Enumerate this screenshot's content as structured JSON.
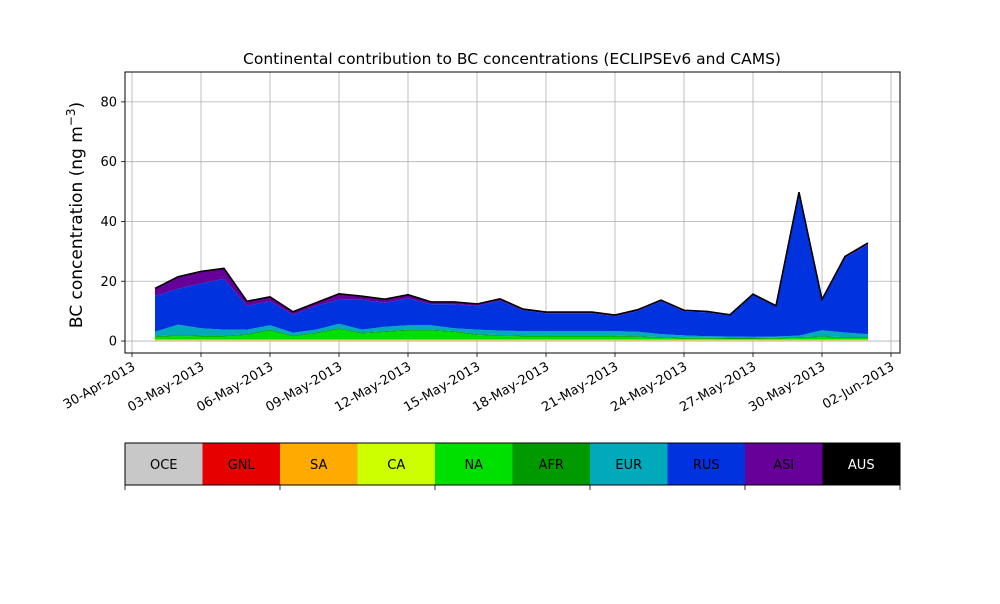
{
  "chart_data": {
    "type": "area",
    "stacked": true,
    "title": "Continental contribution to BC concentrations (ECLIPSEv6 and CAMS)",
    "ylabel_main": "BC concentration (ng m",
    "ylabel_sup": "−3",
    "ylabel_close": ")",
    "xlabel": "",
    "grid": true,
    "ylim": [
      -4,
      90
    ],
    "xlim": [
      "2013-04-30",
      "2013-06-02"
    ],
    "x_ticks": [
      "30-Apr-2013",
      "03-May-2013",
      "06-May-2013",
      "09-May-2013",
      "12-May-2013",
      "15-May-2013",
      "18-May-2013",
      "21-May-2013",
      "24-May-2013",
      "27-May-2013",
      "30-May-2013",
      "02-Jun-2013"
    ],
    "y_ticks": [
      "0",
      "20",
      "40",
      "60",
      "80"
    ],
    "dates": [
      "2013-05-01",
      "2013-05-02",
      "2013-05-03",
      "2013-05-04",
      "2013-05-05",
      "2013-05-06",
      "2013-05-07",
      "2013-05-08",
      "2013-05-09",
      "2013-05-10",
      "2013-05-11",
      "2013-05-12",
      "2013-05-13",
      "2013-05-14",
      "2013-05-15",
      "2013-05-16",
      "2013-05-17",
      "2013-05-18",
      "2013-05-19",
      "2013-05-20",
      "2013-05-21",
      "2013-05-22",
      "2013-05-23",
      "2013-05-24",
      "2013-05-25",
      "2013-05-26",
      "2013-05-27",
      "2013-05-28",
      "2013-05-29",
      "2013-05-30",
      "2013-05-31",
      "2013-06-01"
    ],
    "series": [
      {
        "name": "OCE",
        "color": "#c8c8c8",
        "values": [
          0.2,
          0.2,
          0.2,
          0.2,
          0.2,
          0.2,
          0.2,
          0.2,
          0.2,
          0.2,
          0.2,
          0.2,
          0.2,
          0.2,
          0.2,
          0.2,
          0.2,
          0.2,
          0.2,
          0.2,
          0.2,
          0.2,
          0.2,
          0.2,
          0.2,
          0.2,
          0.2,
          0.2,
          0.2,
          0.2,
          0.2,
          0.2
        ]
      },
      {
        "name": "GNL",
        "color": "#e60000",
        "values": [
          0,
          0,
          0,
          0,
          0,
          0,
          0,
          0,
          0,
          0,
          0,
          0,
          0,
          0,
          0,
          0,
          0,
          0,
          0,
          0,
          0,
          0,
          0,
          0,
          0,
          0,
          0,
          0,
          0,
          0,
          0,
          0
        ]
      },
      {
        "name": "SA",
        "color": "#ffaa00",
        "values": [
          0.1,
          0.1,
          0.1,
          0.1,
          0.1,
          0.1,
          0.1,
          0.1,
          0.1,
          0.1,
          0.1,
          0.1,
          0.1,
          0.1,
          0.1,
          0.1,
          0.1,
          0.1,
          0.1,
          0.1,
          0.1,
          0.1,
          0.1,
          0.1,
          0.1,
          0.1,
          0.1,
          0.1,
          0.1,
          0.1,
          0.1,
          0.1
        ]
      },
      {
        "name": "CA",
        "color": "#ccff00",
        "values": [
          0.2,
          0.2,
          0.2,
          0.2,
          0.2,
          0.2,
          0.2,
          0.2,
          0.2,
          0.2,
          0.2,
          0.2,
          0.2,
          0.2,
          0.2,
          0.2,
          0.2,
          0.2,
          0.2,
          0.2,
          0.2,
          0.2,
          0.2,
          0.2,
          0.2,
          0.2,
          0.2,
          0.2,
          0.2,
          0.2,
          0.2,
          0.2
        ]
      },
      {
        "name": "NA",
        "color": "#00e000",
        "values": [
          0.8,
          1.2,
          1.0,
          1.0,
          1.5,
          3.0,
          1.0,
          2.0,
          3.5,
          2.0,
          2.5,
          3.0,
          3.0,
          2.5,
          1.5,
          1.2,
          1.0,
          1.0,
          1.0,
          1.0,
          1.0,
          0.8,
          0.5,
          0.3,
          0.3,
          0.2,
          0.2,
          0.3,
          0.5,
          0.8,
          0.5,
          0.5
        ]
      },
      {
        "name": "AFR",
        "color": "#009900",
        "values": [
          0.3,
          0.3,
          0.3,
          0.3,
          0.3,
          0.3,
          0.3,
          0.3,
          0.3,
          0.3,
          0.3,
          0.3,
          0.3,
          0.3,
          0.3,
          0.3,
          0.3,
          0.3,
          0.3,
          0.3,
          0.3,
          0.3,
          0.3,
          0.3,
          0.3,
          0.3,
          0.3,
          0.3,
          0.3,
          0.3,
          0.3,
          0.3
        ]
      },
      {
        "name": "EUR",
        "color": "#00aabb",
        "values": [
          1.5,
          3.5,
          2.5,
          2.0,
          1.5,
          1.5,
          1.0,
          1.0,
          1.5,
          1.0,
          1.5,
          1.5,
          1.5,
          1.0,
          1.5,
          1.5,
          1.5,
          1.5,
          1.5,
          1.5,
          1.5,
          1.5,
          1.0,
          0.8,
          0.5,
          0.5,
          0.4,
          0.4,
          0.5,
          2.0,
          1.5,
          1.0
        ]
      },
      {
        "name": "RUS",
        "color": "#0033dd",
        "values": [
          12,
          12,
          15,
          17,
          8,
          8,
          6,
          8,
          8,
          10,
          8,
          9,
          7,
          8,
          8,
          10,
          7,
          6,
          6,
          6,
          5,
          7,
          11,
          8,
          8,
          7,
          14,
          10,
          47,
          10,
          25,
          30
        ]
      },
      {
        "name": "ASI",
        "color": "#660099",
        "values": [
          2.5,
          4.0,
          4.0,
          3.5,
          1.5,
          1.5,
          1.0,
          1.0,
          2.0,
          1.2,
          1.2,
          1.2,
          0.8,
          0.8,
          0.6,
          0.6,
          0.4,
          0.4,
          0.4,
          0.4,
          0.4,
          0.4,
          0.4,
          0.4,
          0.3,
          0.3,
          0.3,
          0.3,
          1.0,
          0.3,
          0.5,
          0.5
        ]
      },
      {
        "name": "AUS",
        "color": "#000000",
        "values": [
          0,
          0,
          0,
          0,
          0,
          0,
          0,
          0,
          0,
          0,
          0,
          0,
          0,
          0,
          0,
          0,
          0,
          0,
          0,
          0,
          0,
          0,
          0,
          0,
          0,
          0,
          0,
          0,
          0,
          0,
          0,
          0
        ]
      }
    ]
  }
}
